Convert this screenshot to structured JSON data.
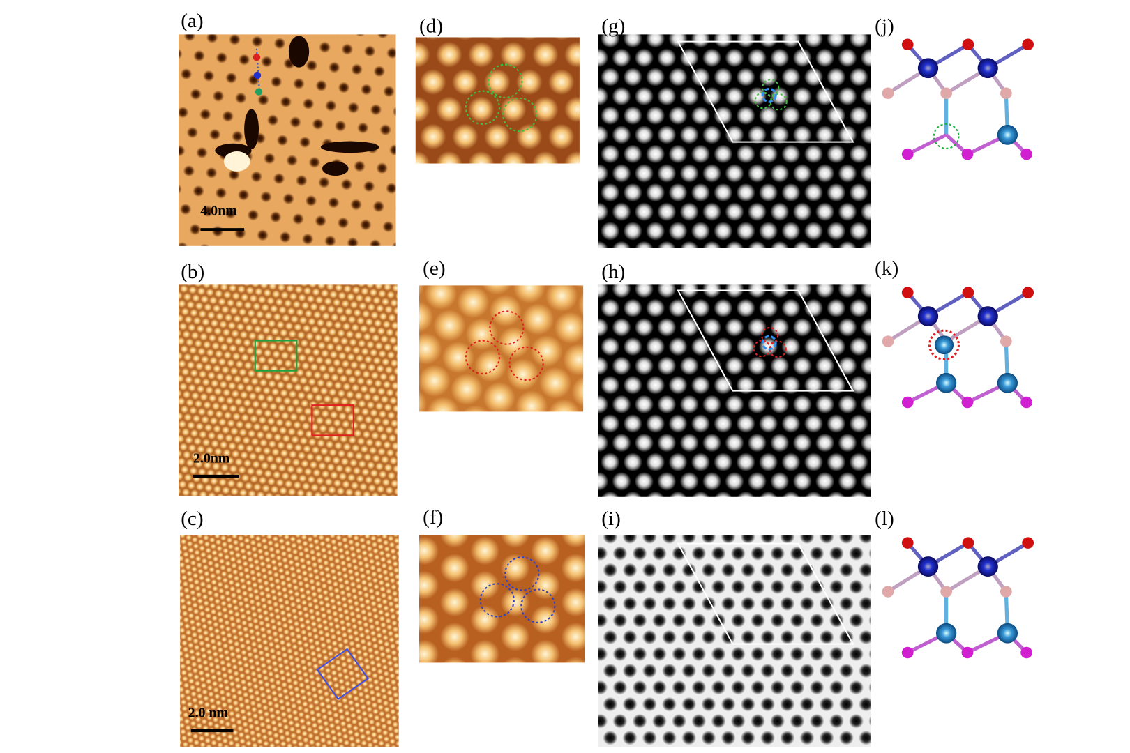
{
  "panels": [
    {
      "label": "(a)",
      "scale_bar": "4.0nm"
    },
    {
      "label": "(b)",
      "scale_bar": "2.0nm"
    },
    {
      "label": "(c)",
      "scale_bar": "2.0 nm"
    },
    {
      "label": "(d)"
    },
    {
      "label": "(e)"
    },
    {
      "label": "(f)"
    },
    {
      "label": "(g)"
    },
    {
      "label": "(h)"
    },
    {
      "label": "(i)"
    },
    {
      "label": "(j)"
    },
    {
      "label": "(k)"
    },
    {
      "label": "(l)"
    }
  ]
}
